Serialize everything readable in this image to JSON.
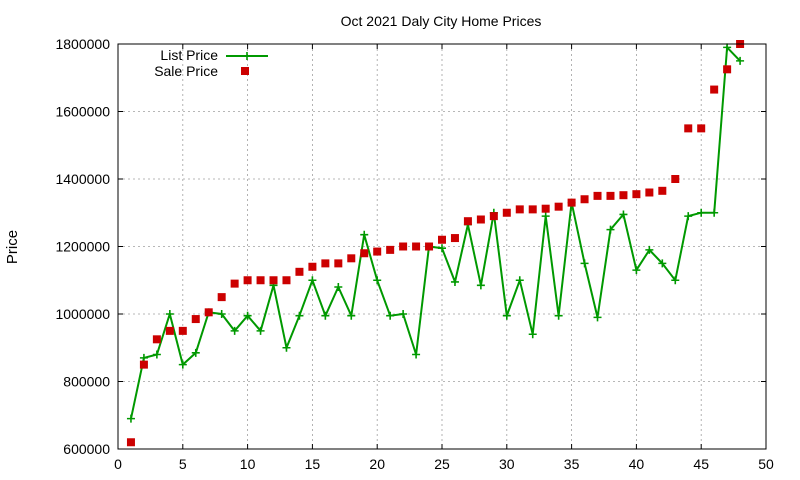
{
  "chart_data": {
    "type": "line",
    "title": "Oct 2021 Daly City Home Prices",
    "xlabel": "",
    "ylabel": "Price",
    "xlim": [
      0,
      50
    ],
    "ylim": [
      600000,
      1800000
    ],
    "xticks": [
      0,
      5,
      10,
      15,
      20,
      25,
      30,
      35,
      40,
      45,
      50
    ],
    "yticks": [
      600000,
      800000,
      1000000,
      1200000,
      1400000,
      1600000,
      1800000
    ],
    "grid": true,
    "legend_position": "top-left",
    "x": [
      1,
      2,
      3,
      4,
      5,
      6,
      7,
      8,
      9,
      10,
      11,
      12,
      13,
      14,
      15,
      16,
      17,
      18,
      19,
      20,
      21,
      22,
      23,
      24,
      25,
      26,
      27,
      28,
      29,
      30,
      31,
      32,
      33,
      34,
      35,
      36,
      37,
      38,
      39,
      40,
      41,
      42,
      43,
      44,
      45,
      46,
      47,
      48
    ],
    "series": [
      {
        "name": "List Price",
        "style": "line-with-plus-markers",
        "color": "#009900",
        "values": [
          690000,
          870000,
          880000,
          1000000,
          850000,
          885000,
          1005000,
          1000000,
          950000,
          995000,
          950000,
          1085000,
          900000,
          995000,
          1100000,
          995000,
          1080000,
          995000,
          1235000,
          1100000,
          995000,
          1000000,
          880000,
          1200000,
          1195000,
          1095000,
          1265000,
          1085000,
          1300000,
          995000,
          1100000,
          940000,
          1290000,
          995000,
          1330000,
          1150000,
          990000,
          1250000,
          1295000,
          1130000,
          1190000,
          1150000,
          1100000,
          1290000,
          1300000,
          1300000,
          1790000,
          1750000
        ]
      },
      {
        "name": "Sale Price",
        "style": "square-markers",
        "color": "#cc0000",
        "values": [
          620000,
          850000,
          925000,
          950000,
          950000,
          985000,
          1005000,
          1050000,
          1090000,
          1100000,
          1100000,
          1100000,
          1100000,
          1125000,
          1140000,
          1150000,
          1150000,
          1165000,
          1180000,
          1185000,
          1190000,
          1200000,
          1200000,
          1200000,
          1220000,
          1225000,
          1275000,
          1280000,
          1290000,
          1300000,
          1310000,
          1310000,
          1312000,
          1318000,
          1330000,
          1340000,
          1350000,
          1350000,
          1352000,
          1355000,
          1360000,
          1365000,
          1400000,
          1550000,
          1550000,
          1665000,
          1725000,
          1800000
        ]
      }
    ]
  }
}
